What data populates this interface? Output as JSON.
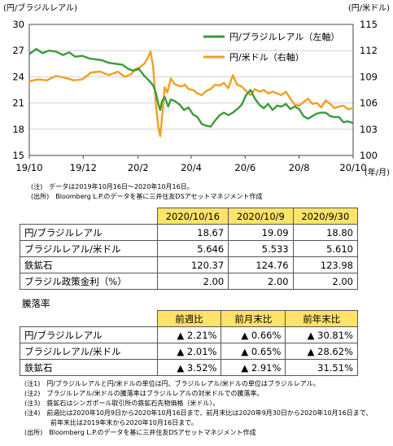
{
  "chart_data": {
    "type": "line",
    "left_axis_title": "(円/ブラジルレアル)",
    "right_axis_title": "(円/米ドル)",
    "x_unit_label": "(年/月)",
    "y_left": {
      "min": 15,
      "max": 30,
      "ticks": [
        15,
        18,
        21,
        24,
        27,
        30
      ]
    },
    "y_right": {
      "min": 100,
      "max": 115,
      "ticks": [
        100,
        103,
        106,
        109,
        112,
        115
      ]
    },
    "x_ticks": [
      {
        "label": "19/10",
        "t": 0
      },
      {
        "label": "19/12",
        "t": 61
      },
      {
        "label": "20/2",
        "t": 123
      },
      {
        "label": "20/4",
        "t": 183
      },
      {
        "label": "20/6",
        "t": 244
      },
      {
        "label": "20/8",
        "t": 305
      },
      {
        "label": "20/10",
        "t": 366
      }
    ],
    "x_range": [
      0,
      366
    ],
    "grid": "horizontal",
    "legend_position": "top-right",
    "series": [
      {
        "name": "円/ブラジルレアル（左軸）",
        "axis": "left",
        "color": "#3a9a3a",
        "points": [
          [
            0,
            26.6
          ],
          [
            8,
            27.2
          ],
          [
            15,
            26.7
          ],
          [
            22,
            27.0
          ],
          [
            30,
            26.9
          ],
          [
            38,
            26.5
          ],
          [
            45,
            26.8
          ],
          [
            52,
            26.3
          ],
          [
            60,
            26.4
          ],
          [
            68,
            26.1
          ],
          [
            75,
            26.0
          ],
          [
            82,
            25.9
          ],
          [
            90,
            25.6
          ],
          [
            97,
            25.5
          ],
          [
            105,
            25.4
          ],
          [
            112,
            24.9
          ],
          [
            118,
            24.7
          ],
          [
            124,
            24.9
          ],
          [
            130,
            24.1
          ],
          [
            136,
            23.5
          ],
          [
            140,
            23.0
          ],
          [
            143,
            22.2
          ],
          [
            146,
            20.8
          ],
          [
            148,
            20.2
          ],
          [
            150,
            21.2
          ],
          [
            153,
            21.7
          ],
          [
            157,
            20.6
          ],
          [
            160,
            21.4
          ],
          [
            165,
            21.2
          ],
          [
            170,
            20.8
          ],
          [
            175,
            20.2
          ],
          [
            180,
            20.5
          ],
          [
            185,
            19.7
          ],
          [
            190,
            19.4
          ],
          [
            195,
            18.6
          ],
          [
            200,
            18.4
          ],
          [
            205,
            18.3
          ],
          [
            210,
            19.0
          ],
          [
            215,
            19.6
          ],
          [
            220,
            19.9
          ],
          [
            225,
            19.6
          ],
          [
            230,
            19.9
          ],
          [
            235,
            20.3
          ],
          [
            240,
            20.8
          ],
          [
            245,
            21.9
          ],
          [
            250,
            22.5
          ],
          [
            255,
            21.5
          ],
          [
            260,
            20.8
          ],
          [
            265,
            20.4
          ],
          [
            270,
            20.9
          ],
          [
            275,
            20.2
          ],
          [
            280,
            20.7
          ],
          [
            285,
            20.6
          ],
          [
            290,
            20.9
          ],
          [
            295,
            20.3
          ],
          [
            300,
            20.6
          ],
          [
            305,
            20.3
          ],
          [
            310,
            19.5
          ],
          [
            315,
            19.2
          ],
          [
            320,
            19.5
          ],
          [
            325,
            19.8
          ],
          [
            330,
            19.9
          ],
          [
            335,
            19.9
          ],
          [
            340,
            19.5
          ],
          [
            345,
            19.4
          ],
          [
            350,
            19.4
          ],
          [
            355,
            18.8
          ],
          [
            360,
            18.9
          ],
          [
            366,
            18.7
          ]
        ]
      },
      {
        "name": "円/米ドル（右軸）",
        "axis": "right",
        "color": "#f0a020",
        "points": [
          [
            0,
            108.5
          ],
          [
            10,
            108.7
          ],
          [
            20,
            108.6
          ],
          [
            30,
            109.1
          ],
          [
            40,
            108.9
          ],
          [
            50,
            108.6
          ],
          [
            60,
            108.7
          ],
          [
            70,
            109.5
          ],
          [
            80,
            109.6
          ],
          [
            90,
            109.2
          ],
          [
            100,
            109.6
          ],
          [
            108,
            109.0
          ],
          [
            115,
            109.3
          ],
          [
            120,
            109.9
          ],
          [
            125,
            110.1
          ],
          [
            130,
            110.5
          ],
          [
            134,
            111.2
          ],
          [
            137,
            111.9
          ],
          [
            140,
            110.2
          ],
          [
            143,
            105.9
          ],
          [
            146,
            103.1
          ],
          [
            148,
            102.2
          ],
          [
            150,
            104.3
          ],
          [
            153,
            107.8
          ],
          [
            156,
            107.2
          ],
          [
            160,
            108.8
          ],
          [
            164,
            108.2
          ],
          [
            168,
            108.0
          ],
          [
            172,
            107.9
          ],
          [
            176,
            108.1
          ],
          [
            180,
            107.6
          ],
          [
            185,
            107.5
          ],
          [
            190,
            107.1
          ],
          [
            195,
            106.9
          ],
          [
            200,
            107.4
          ],
          [
            205,
            107.6
          ],
          [
            210,
            108.1
          ],
          [
            215,
            108.0
          ],
          [
            220,
            108.3
          ],
          [
            225,
            107.7
          ],
          [
            230,
            109.2
          ],
          [
            235,
            108.1
          ],
          [
            240,
            107.9
          ],
          [
            245,
            107.4
          ],
          [
            250,
            106.9
          ],
          [
            255,
            107.6
          ],
          [
            260,
            107.3
          ],
          [
            265,
            107.5
          ],
          [
            270,
            107.1
          ],
          [
            275,
            107.3
          ],
          [
            280,
            107.1
          ],
          [
            285,
            106.9
          ],
          [
            290,
            107.3
          ],
          [
            295,
            106.5
          ],
          [
            300,
            105.8
          ],
          [
            305,
            105.7
          ],
          [
            310,
            106.1
          ],
          [
            315,
            106.5
          ],
          [
            320,
            105.9
          ],
          [
            325,
            106.0
          ],
          [
            330,
            105.5
          ],
          [
            335,
            106.3
          ],
          [
            340,
            105.9
          ],
          [
            345,
            105.4
          ],
          [
            350,
            105.6
          ],
          [
            355,
            105.7
          ],
          [
            360,
            105.3
          ],
          [
            366,
            105.4
          ]
        ]
      }
    ]
  },
  "chart_notes": [
    "(注)　データは2019年10月16日～2020年10月16日。",
    "(出所)　Bloomberg L.P.のデータを基に三井住友DSアセットマネジメント作成"
  ],
  "table1": {
    "headers": [
      "2020/10/16",
      "2020/10/9",
      "2020/9/30"
    ],
    "rows": [
      {
        "label": "円/ブラジルレアル",
        "values": [
          "18.67",
          "19.09",
          "18.80"
        ]
      },
      {
        "label": "ブラジルレアル/米ドル",
        "values": [
          "5.646",
          "5.533",
          "5.610"
        ]
      },
      {
        "label": "鉄鉱石",
        "values": [
          "120.37",
          "124.76",
          "123.98"
        ]
      },
      {
        "label": "ブラジル政策金利（%）",
        "values": [
          "2.00",
          "2.00",
          "2.00"
        ]
      }
    ]
  },
  "table2": {
    "title": "騰落率",
    "headers": [
      "前週比",
      "前月末比",
      "前年末比"
    ],
    "rows": [
      {
        "label": "円/ブラジルレアル",
        "values": [
          "▲ 2.21%",
          "▲ 0.66%",
          "▲ 30.81%"
        ]
      },
      {
        "label": "ブラジルレアル/米ドル",
        "values": [
          "▲ 2.01%",
          "▲ 0.65%",
          "▲ 28.62%"
        ]
      },
      {
        "label": "鉄鉱石",
        "values": [
          "▲ 3.52%",
          "▲ 2.91%",
          "31.51%"
        ]
      }
    ]
  },
  "footnotes": [
    "(注1)　円/ブラジルレアルと円/米ドルの単位は円、ブラジルレアル/米ドルの単位はブラジルレアル。",
    "(注2)　ブラジルレアル/米ドルの騰落率はブラジルレアルの対米ドルでの騰落率。",
    "(注3)　鉄鉱石はシンガポール取引所の鉄鉱石先物価格（米ドル）。",
    "(注4)　前週比は2020年10月9日から2020年10月16日まで、前月末比は2020年9月30日から2020年10月16日まで、",
    "前年末比は2019年末から2020年10月16日まで。",
    "(出所)　Bloomberg L.P.のデータを基に三井住友DSアセットマネジメント作成"
  ]
}
